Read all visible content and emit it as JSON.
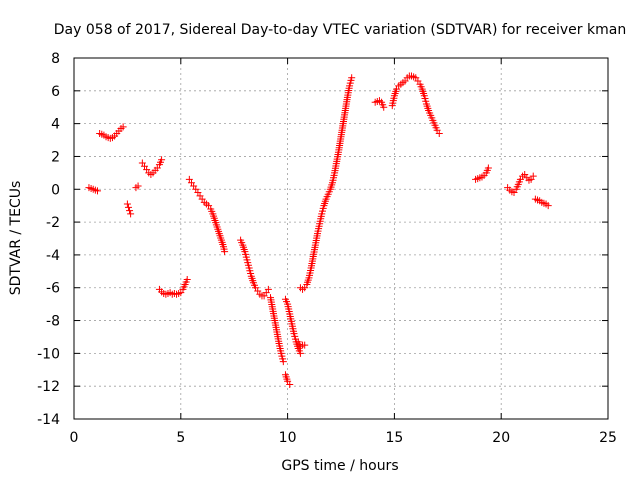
{
  "chart_data": {
    "type": "scatter",
    "title": "Day 058 of 2017, Sidereal Day-to-day VTEC variation (SDTVAR) for receiver kman",
    "xlabel": "GPS time / hours",
    "ylabel": "SDTVAR / TECUs",
    "xlim": [
      0,
      25
    ],
    "ylim": [
      -14,
      8
    ],
    "xticks": [
      0,
      5,
      10,
      15,
      20,
      25
    ],
    "yticks": [
      -14,
      -12,
      -10,
      -8,
      -6,
      -4,
      -2,
      0,
      2,
      4,
      6,
      8
    ],
    "grid": true,
    "marker": "plus",
    "color": "#ff0000",
    "segments": [
      [
        [
          0.7,
          0.1
        ],
        [
          0.8,
          0.05
        ],
        [
          0.9,
          0.0
        ],
        [
          1.0,
          -0.05
        ],
        [
          1.1,
          -0.1
        ]
      ],
      [
        [
          1.2,
          3.4
        ],
        [
          1.3,
          3.35
        ],
        [
          1.4,
          3.3
        ],
        [
          1.5,
          3.2
        ],
        [
          1.6,
          3.15
        ],
        [
          1.7,
          3.1
        ],
        [
          1.8,
          3.15
        ],
        [
          1.9,
          3.25
        ],
        [
          2.0,
          3.4
        ],
        [
          2.1,
          3.55
        ],
        [
          2.2,
          3.7
        ],
        [
          2.3,
          3.8
        ]
      ],
      [
        [
          2.5,
          -0.9
        ],
        [
          2.55,
          -1.1
        ],
        [
          2.6,
          -1.3
        ],
        [
          2.65,
          -1.5
        ]
      ],
      [
        [
          2.9,
          0.1
        ],
        [
          3.0,
          0.2
        ]
      ],
      [
        [
          3.2,
          1.6
        ],
        [
          3.3,
          1.4
        ],
        [
          3.4,
          1.2
        ],
        [
          3.5,
          1.0
        ],
        [
          3.6,
          0.9
        ],
        [
          3.7,
          1.0
        ],
        [
          3.8,
          1.15
        ],
        [
          3.9,
          1.3
        ],
        [
          4.0,
          1.5
        ],
        [
          4.1,
          1.8
        ]
      ],
      [
        [
          4.0,
          -6.1
        ],
        [
          4.1,
          -6.25
        ],
        [
          4.2,
          -6.35
        ],
        [
          4.3,
          -6.4
        ],
        [
          4.4,
          -6.35
        ],
        [
          4.5,
          -6.3
        ],
        [
          4.6,
          -6.4
        ],
        [
          4.7,
          -6.35
        ],
        [
          4.8,
          -6.4
        ],
        [
          4.9,
          -6.35
        ],
        [
          5.0,
          -6.3
        ],
        [
          5.1,
          -6.1
        ],
        [
          5.2,
          -5.8
        ],
        [
          5.3,
          -5.5
        ]
      ],
      [
        [
          5.4,
          0.6
        ],
        [
          5.5,
          0.4
        ],
        [
          5.6,
          0.2
        ],
        [
          5.7,
          0.0
        ],
        [
          5.8,
          -0.2
        ],
        [
          5.9,
          -0.4
        ],
        [
          6.0,
          -0.6
        ],
        [
          6.1,
          -0.8
        ],
        [
          6.2,
          -0.9
        ],
        [
          6.3,
          -1.0
        ],
        [
          6.4,
          -1.2
        ],
        [
          6.5,
          -1.5
        ],
        [
          6.6,
          -1.9
        ],
        [
          6.7,
          -2.3
        ],
        [
          6.8,
          -2.7
        ],
        [
          6.9,
          -3.1
        ],
        [
          7.0,
          -3.5
        ],
        [
          7.05,
          -3.8
        ]
      ],
      [
        [
          7.8,
          -3.1
        ],
        [
          7.9,
          -3.4
        ],
        [
          8.0,
          -3.8
        ],
        [
          8.1,
          -4.3
        ],
        [
          8.2,
          -4.8
        ],
        [
          8.3,
          -5.3
        ],
        [
          8.4,
          -5.7
        ],
        [
          8.5,
          -6.0
        ],
        [
          8.6,
          -6.2
        ],
        [
          8.7,
          -6.4
        ],
        [
          8.8,
          -6.5
        ],
        [
          8.9,
          -6.5
        ],
        [
          9.0,
          -6.3
        ],
        [
          9.1,
          -6.1
        ]
      ],
      [
        [
          9.2,
          -6.6
        ],
        [
          9.3,
          -7.3
        ],
        [
          9.4,
          -8.0
        ],
        [
          9.5,
          -8.7
        ],
        [
          9.6,
          -9.4
        ],
        [
          9.7,
          -10.0
        ],
        [
          9.8,
          -10.5
        ]
      ],
      [
        [
          9.9,
          -6.7
        ],
        [
          10.0,
          -7.0
        ],
        [
          10.1,
          -7.6
        ],
        [
          10.2,
          -8.2
        ],
        [
          10.3,
          -8.8
        ],
        [
          10.4,
          -9.3
        ],
        [
          10.5,
          -9.7
        ],
        [
          10.6,
          -10.0
        ]
      ],
      [
        [
          9.9,
          -11.3
        ],
        [
          10.0,
          -11.7
        ],
        [
          10.1,
          -11.9
        ]
      ],
      [
        [
          10.5,
          -9.3
        ],
        [
          10.6,
          -9.6
        ],
        [
          10.7,
          -9.5
        ],
        [
          10.8,
          -9.5
        ]
      ],
      [
        [
          10.6,
          -6.0
        ],
        [
          10.7,
          -6.1
        ],
        [
          10.8,
          -6.0
        ],
        [
          10.9,
          -5.8
        ],
        [
          11.0,
          -5.4
        ],
        [
          11.1,
          -4.8
        ],
        [
          11.2,
          -4.1
        ],
        [
          11.3,
          -3.4
        ],
        [
          11.4,
          -2.7
        ],
        [
          11.5,
          -2.1
        ],
        [
          11.6,
          -1.5
        ],
        [
          11.7,
          -1.0
        ],
        [
          11.8,
          -0.6
        ],
        [
          11.9,
          -0.3
        ],
        [
          12.0,
          0.0
        ],
        [
          12.1,
          0.4
        ],
        [
          12.2,
          1.0
        ],
        [
          12.3,
          1.7
        ],
        [
          12.4,
          2.4
        ],
        [
          12.5,
          3.2
        ],
        [
          12.6,
          4.0
        ],
        [
          12.7,
          4.8
        ],
        [
          12.8,
          5.6
        ],
        [
          12.9,
          6.3
        ],
        [
          13.0,
          6.8
        ]
      ],
      [
        [
          14.1,
          5.3
        ],
        [
          14.2,
          5.35
        ],
        [
          14.3,
          5.4
        ],
        [
          14.4,
          5.3
        ],
        [
          14.5,
          5.0
        ]
      ],
      [
        [
          14.9,
          5.1
        ],
        [
          15.0,
          5.7
        ],
        [
          15.1,
          6.1
        ],
        [
          15.2,
          6.3
        ],
        [
          15.3,
          6.4
        ],
        [
          15.4,
          6.5
        ],
        [
          15.5,
          6.6
        ],
        [
          15.6,
          6.8
        ],
        [
          15.7,
          6.9
        ],
        [
          15.8,
          6.9
        ],
        [
          15.9,
          6.85
        ],
        [
          16.0,
          6.8
        ],
        [
          16.1,
          6.6
        ],
        [
          16.2,
          6.4
        ],
        [
          16.3,
          6.1
        ],
        [
          16.4,
          5.7
        ],
        [
          16.5,
          5.2
        ],
        [
          16.6,
          4.8
        ],
        [
          16.7,
          4.5
        ],
        [
          16.8,
          4.2
        ],
        [
          16.9,
          3.9
        ],
        [
          17.0,
          3.6
        ],
        [
          17.1,
          3.4
        ]
      ],
      [
        [
          18.8,
          0.6
        ],
        [
          18.9,
          0.65
        ],
        [
          19.0,
          0.7
        ],
        [
          19.1,
          0.75
        ],
        [
          19.2,
          0.85
        ],
        [
          19.3,
          1.0
        ],
        [
          19.4,
          1.3
        ]
      ],
      [
        [
          20.3,
          0.1
        ],
        [
          20.4,
          -0.05
        ],
        [
          20.5,
          -0.15
        ],
        [
          20.6,
          -0.2
        ],
        [
          20.7,
          0.0
        ],
        [
          20.8,
          0.3
        ],
        [
          20.9,
          0.6
        ],
        [
          21.0,
          0.8
        ],
        [
          21.1,
          0.9
        ],
        [
          21.2,
          0.7
        ],
        [
          21.3,
          0.55
        ],
        [
          21.4,
          0.6
        ],
        [
          21.5,
          0.8
        ]
      ],
      [
        [
          21.6,
          -0.6
        ],
        [
          21.7,
          -0.65
        ],
        [
          21.8,
          -0.7
        ],
        [
          21.9,
          -0.8
        ],
        [
          22.0,
          -0.85
        ],
        [
          22.1,
          -0.9
        ],
        [
          22.2,
          -1.0
        ]
      ]
    ]
  }
}
